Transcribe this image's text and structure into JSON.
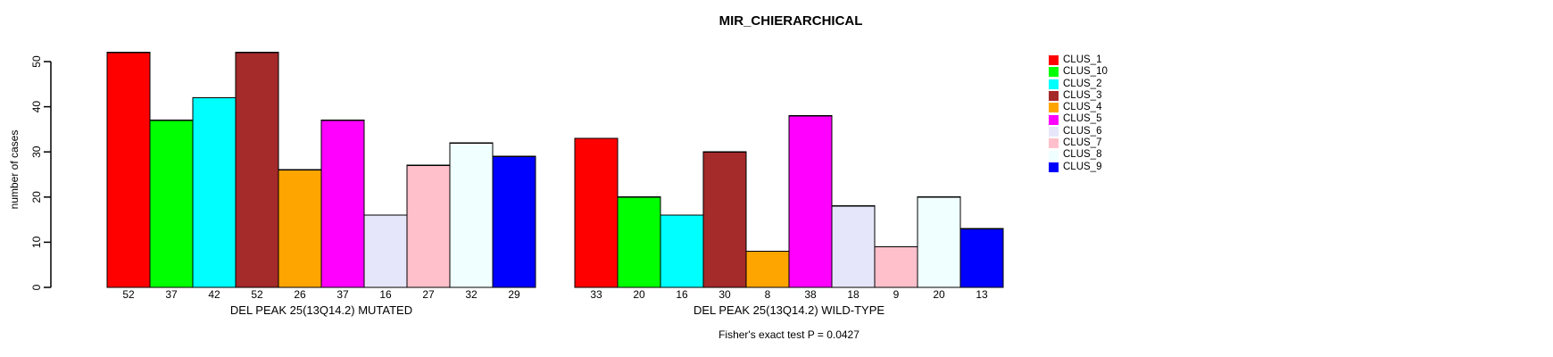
{
  "title": "MIR_CHIERARCHICAL",
  "annotation": "Fisher's exact test P = 0.0427",
  "y_axis_label": "number of cases",
  "chart_data": {
    "type": "bar",
    "title": "MIR_CHIERARCHICAL",
    "xlabel": "",
    "ylabel": "number of cases",
    "ylim": [
      0,
      52
    ],
    "yticks": [
      0,
      10,
      20,
      30,
      40,
      50
    ],
    "grid": false,
    "legend_position": "right",
    "annotation": "Fisher's exact test P = 0.0427",
    "series_labels": [
      "CLUS_1",
      "CLUS_10",
      "CLUS_2",
      "CLUS_3",
      "CLUS_4",
      "CLUS_5",
      "CLUS_6",
      "CLUS_7",
      "CLUS_8",
      "CLUS_9"
    ],
    "colors": [
      "#FF0000",
      "#00FF00",
      "#00FFFF",
      "#A52A2A",
      "#FFA500",
      "#FF00FF",
      "#E6E6FA",
      "#FFC0CB",
      "#F0FFFF",
      "#0000FF"
    ],
    "groups": [
      {
        "label": "DEL PEAK 25(13Q14.2) MUTATED",
        "values": [
          52,
          37,
          42,
          52,
          26,
          37,
          16,
          27,
          32,
          29
        ]
      },
      {
        "label": "DEL PEAK 25(13Q14.2) WILD-TYPE",
        "values": [
          33,
          20,
          16,
          30,
          8,
          38,
          18,
          9,
          20,
          13
        ]
      }
    ]
  },
  "legend": {
    "entries": [
      {
        "label": "CLUS_1",
        "color": "#FF0000"
      },
      {
        "label": "CLUS_10",
        "color": "#00FF00"
      },
      {
        "label": "CLUS_2",
        "color": "#00FFFF"
      },
      {
        "label": "CLUS_3",
        "color": "#A52A2A"
      },
      {
        "label": "CLUS_4",
        "color": "#FFA500"
      },
      {
        "label": "CLUS_5",
        "color": "#FF00FF"
      },
      {
        "label": "CLUS_6",
        "color": "#E6E6FA"
      },
      {
        "label": "CLUS_7",
        "color": "#FFC0CB"
      },
      {
        "label": "CLUS_8",
        "color": "#F0FFFF"
      },
      {
        "label": "CLUS_9",
        "color": "#0000FF"
      }
    ]
  }
}
